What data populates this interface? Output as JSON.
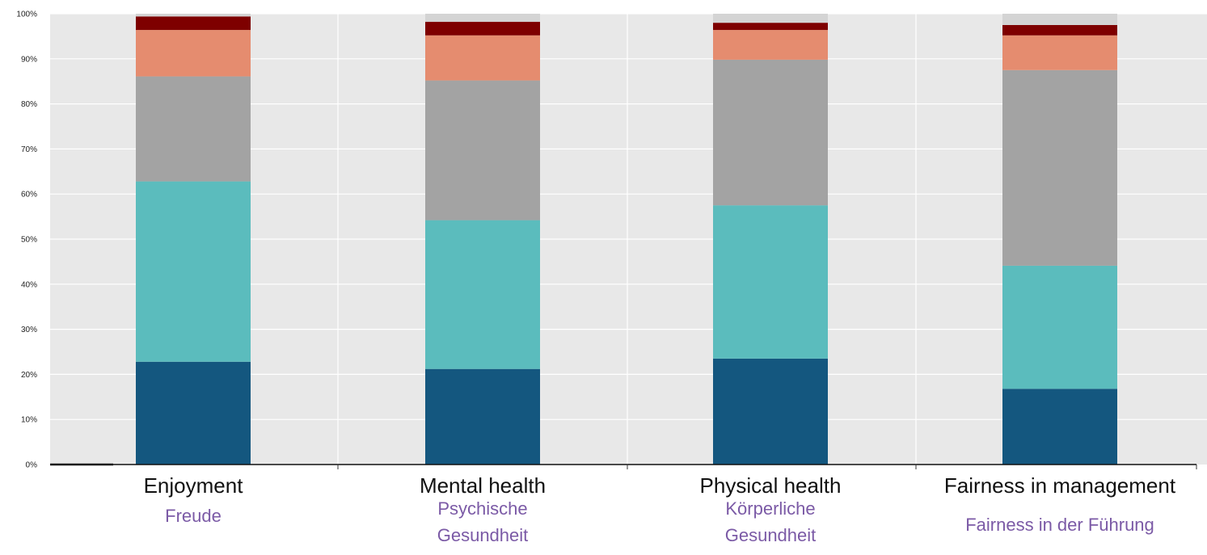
{
  "chart_data": {
    "type": "bar",
    "stacked": true,
    "categories": [
      "Enjoyment",
      "Mental health",
      "Physical health",
      "Fairness in management"
    ],
    "categories_translation": [
      [
        "Freude"
      ],
      [
        "Psychische",
        "Gesundheit"
      ],
      [
        "Körperliche",
        "Gesundheit"
      ],
      [
        "Fairness in der Führung"
      ]
    ],
    "yticks": [
      "0%",
      "10%",
      "20%",
      "30%",
      "40%",
      "50%",
      "60%",
      "70%",
      "80%",
      "90%",
      "100%"
    ],
    "ylim": [
      0,
      100
    ],
    "grid": true,
    "colors": [
      "#14577f",
      "#5bbcbd",
      "#a3a3a3",
      "#e58c6f",
      "#7e0000",
      "#d4d4d4"
    ],
    "series": [
      {
        "values": [
          22.8,
          21.2,
          23.5,
          16.8
        ]
      },
      {
        "values": [
          40.0,
          33.0,
          34.0,
          27.3
        ]
      },
      {
        "values": [
          23.3,
          31.0,
          32.3,
          43.4
        ]
      },
      {
        "values": [
          10.3,
          10.0,
          6.6,
          7.7
        ]
      },
      {
        "values": [
          3.0,
          3.0,
          1.6,
          2.3
        ]
      },
      {
        "values": [
          0.6,
          1.8,
          2.0,
          2.5
        ]
      }
    ]
  }
}
